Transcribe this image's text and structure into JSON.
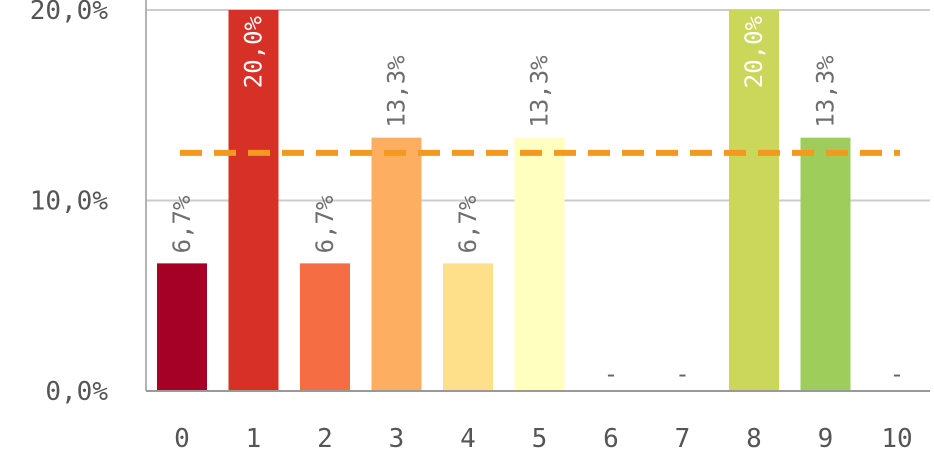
{
  "chart_data": {
    "type": "bar",
    "categories": [
      "0",
      "1",
      "2",
      "3",
      "4",
      "5",
      "6",
      "7",
      "8",
      "9",
      "10"
    ],
    "values": [
      6.7,
      20.0,
      6.7,
      13.3,
      6.7,
      13.3,
      0,
      0,
      20.0,
      13.3,
      0
    ],
    "data_labels": [
      "6,7%",
      "20,0%",
      "6,7%",
      "13,3%",
      "6,7%",
      "13,3%",
      "-",
      "-",
      "20,0%",
      "13,3%",
      "-"
    ],
    "bar_colors": [
      "#a50026",
      "#d73027",
      "#f46d43",
      "#fdae61",
      "#fee08b",
      "#ffffbf",
      "#d9ef8b",
      "#a6d96a",
      "#cad75a",
      "#9fcd5c",
      "#66bd63"
    ],
    "ylim": [
      0,
      20
    ],
    "y_ticks": [
      0,
      10,
      20
    ],
    "y_tick_labels": [
      "0,0%",
      "10,0%",
      "20,0%"
    ],
    "reference_line": {
      "value": 12.5,
      "color": "#f39a1e",
      "style": "dashed"
    },
    "grid": true,
    "title": "",
    "xlabel": "",
    "ylabel": ""
  }
}
